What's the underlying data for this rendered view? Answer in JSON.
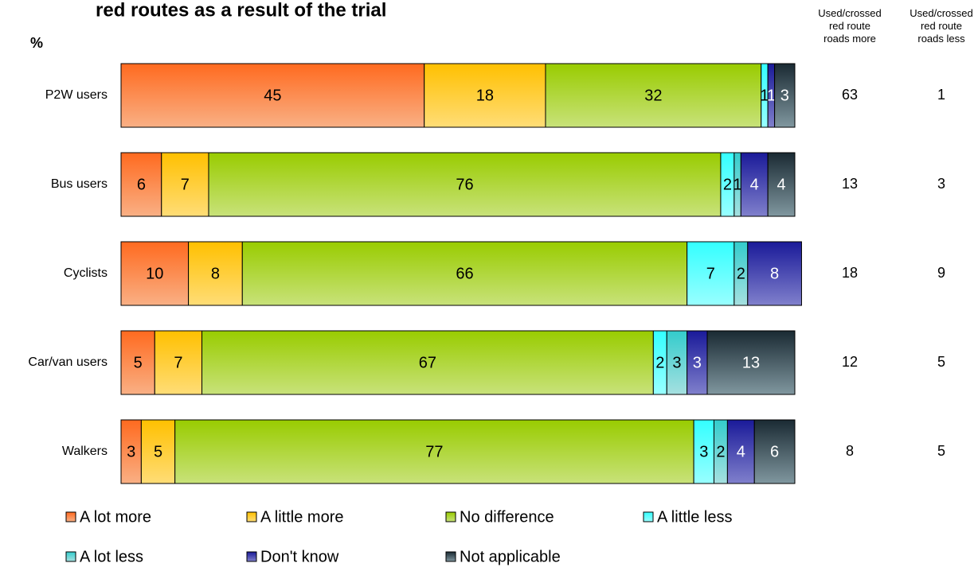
{
  "chart_data": {
    "type": "stacked_bar_horizontal",
    "title": "red routes as a result of the trial",
    "y_label": "%",
    "categories": [
      "P2W users",
      "Bus users",
      "Cyclists",
      "Car/van users",
      "Walkers"
    ],
    "xlim": [
      0,
      100
    ],
    "series": [
      {
        "name": "A lot more",
        "color": "#ff6a1f",
        "light": "#f9b085",
        "values": [
          45,
          6,
          10,
          5,
          3
        ]
      },
      {
        "name": "A little more",
        "color": "#ffc000",
        "light": "#ffdd77",
        "values": [
          18,
          7,
          8,
          7,
          5
        ]
      },
      {
        "name": "No difference",
        "color": "#99cc00",
        "light": "#c8e27a",
        "values": [
          32,
          76,
          66,
          67,
          77
        ]
      },
      {
        "name": "A little less",
        "color": "#33ffff",
        "light": "#99ffff",
        "values": [
          1,
          2,
          7,
          2,
          3
        ]
      },
      {
        "name": "A lot less",
        "color": "#33cccc",
        "light": "#a6e0e0",
        "values": [
          null,
          1,
          2,
          3,
          2
        ]
      },
      {
        "name": "Don't know",
        "color": "#1a1a99",
        "light": "#8080cc",
        "values": [
          1,
          4,
          8,
          3,
          4
        ]
      },
      {
        "name": "Not applicable",
        "color": "#1a2a33",
        "light": "#80979f",
        "values": [
          3,
          4,
          null,
          13,
          6
        ]
      }
    ],
    "side_columns": [
      {
        "header": "Used/crossed red route roads more",
        "values": [
          63,
          13,
          18,
          12,
          8
        ]
      },
      {
        "header": "Used/crossed red route roads less",
        "values": [
          1,
          3,
          9,
          5,
          5
        ]
      }
    ]
  }
}
